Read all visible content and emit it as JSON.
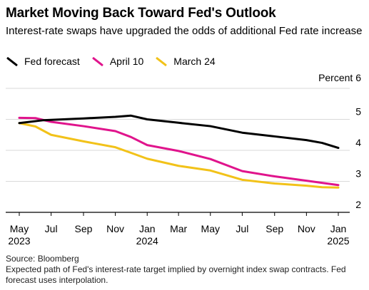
{
  "header": {
    "title": "Market Moving Back Toward Fed's Outlook",
    "subtitle": "Interest-rate swaps have upgraded the odds of additional Fed rate increase"
  },
  "legend": [
    {
      "label": "Fed forecast",
      "color": "#000000"
    },
    {
      "label": "April 10",
      "color": "#e0148c"
    },
    {
      "label": "March 24",
      "color": "#f2c219"
    }
  ],
  "footer": {
    "source": "Source: Bloomberg",
    "note": "Expected path of Fed's interest-rate target implied by overnight index swap contracts. Fed forecast uses interpolation."
  },
  "chart_data": {
    "type": "line",
    "title": "Market Moving Back Toward Fed's Outlook",
    "ylabel": "Percent",
    "ylim": [
      2,
      6
    ],
    "yticks": [
      2,
      3,
      4,
      5,
      6
    ],
    "y_tick_labels": [
      "2",
      "3",
      "4",
      "5",
      "Percent 6"
    ],
    "xlim": [
      "2023-05-01",
      "2025-01-01"
    ],
    "x_ticks": [
      {
        "date": "2023-05-01",
        "label": "May",
        "year": "2023"
      },
      {
        "date": "2023-07-01",
        "label": "Jul",
        "year": ""
      },
      {
        "date": "2023-09-01",
        "label": "Sep",
        "year": ""
      },
      {
        "date": "2023-11-01",
        "label": "Nov",
        "year": ""
      },
      {
        "date": "2024-01-01",
        "label": "Jan",
        "year": "2024"
      },
      {
        "date": "2024-03-01",
        "label": "Mar",
        "year": ""
      },
      {
        "date": "2024-05-01",
        "label": "May",
        "year": ""
      },
      {
        "date": "2024-07-01",
        "label": "Jul",
        "year": ""
      },
      {
        "date": "2024-09-01",
        "label": "Sep",
        "year": ""
      },
      {
        "date": "2024-11-01",
        "label": "Nov",
        "year": ""
      },
      {
        "date": "2025-01-01",
        "label": "Jan",
        "year": "2025"
      }
    ],
    "grid": true,
    "legend_position": "top-left",
    "series": [
      {
        "name": "Fed forecast",
        "color": "#000000",
        "points": [
          [
            "2023-05-01",
            4.88
          ],
          [
            "2023-06-15",
            4.97
          ],
          [
            "2023-09-01",
            5.03
          ],
          [
            "2023-11-01",
            5.08
          ],
          [
            "2023-12-01",
            5.12
          ],
          [
            "2024-01-01",
            5.0
          ],
          [
            "2024-03-01",
            4.89
          ],
          [
            "2024-05-01",
            4.78
          ],
          [
            "2024-07-01",
            4.57
          ],
          [
            "2024-09-01",
            4.45
          ],
          [
            "2024-11-01",
            4.33
          ],
          [
            "2024-12-01",
            4.24
          ],
          [
            "2025-01-01",
            4.08
          ]
        ]
      },
      {
        "name": "April 10",
        "color": "#e0148c",
        "points": [
          [
            "2023-05-01",
            5.05
          ],
          [
            "2023-06-01",
            5.04
          ],
          [
            "2023-07-01",
            4.92
          ],
          [
            "2023-09-01",
            4.78
          ],
          [
            "2023-11-01",
            4.62
          ],
          [
            "2023-12-01",
            4.43
          ],
          [
            "2024-01-01",
            4.17
          ],
          [
            "2024-03-01",
            3.98
          ],
          [
            "2024-05-01",
            3.72
          ],
          [
            "2024-07-01",
            3.33
          ],
          [
            "2024-09-01",
            3.16
          ],
          [
            "2024-11-01",
            3.02
          ],
          [
            "2025-01-01",
            2.88
          ]
        ]
      },
      {
        "name": "March 24",
        "color": "#f2c219",
        "points": [
          [
            "2023-05-01",
            4.88
          ],
          [
            "2023-06-01",
            4.77
          ],
          [
            "2023-07-01",
            4.5
          ],
          [
            "2023-09-01",
            4.29
          ],
          [
            "2023-11-01",
            4.1
          ],
          [
            "2023-12-01",
            3.92
          ],
          [
            "2024-01-01",
            3.73
          ],
          [
            "2024-03-01",
            3.5
          ],
          [
            "2024-05-01",
            3.35
          ],
          [
            "2024-07-01",
            3.05
          ],
          [
            "2024-09-01",
            2.93
          ],
          [
            "2024-11-01",
            2.86
          ],
          [
            "2024-12-01",
            2.81
          ],
          [
            "2025-01-01",
            2.8
          ]
        ]
      }
    ]
  }
}
